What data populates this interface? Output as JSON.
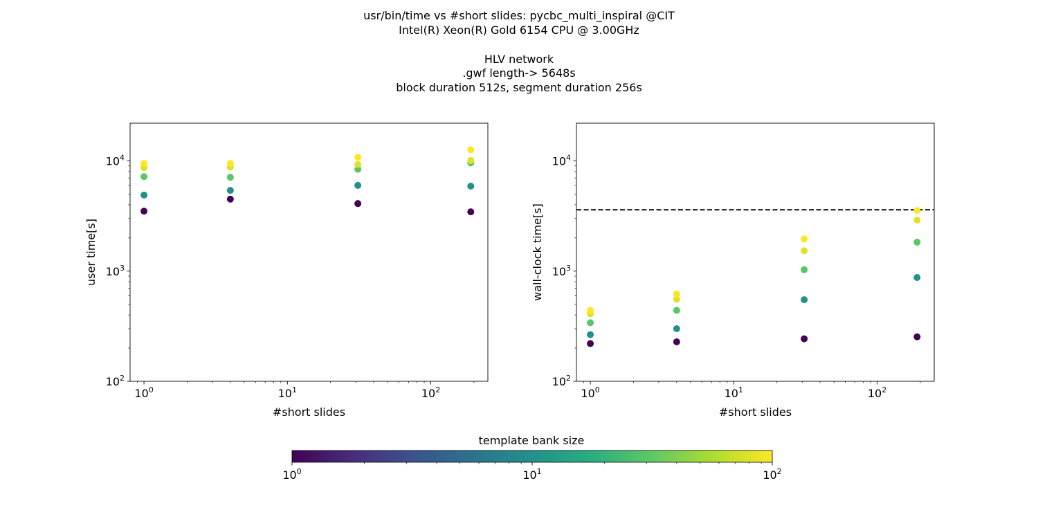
{
  "figure": {
    "title_lines": [
      "usr/bin/time vs #short slides: pycbc_multi_inspiral @CIT",
      "Intel(R) Xeon(R) Gold 6154 CPU @ 3.00GHz",
      "",
      "HLV network",
      ".gwf length-> 5648s",
      "block duration 512s, segment duration 256s"
    ]
  },
  "chart_data": [
    {
      "type": "scatter",
      "xlabel": "#short slides",
      "ylabel": "user time[s]",
      "xscale": "log",
      "yscale": "log",
      "xlim": [
        0.8,
        250
      ],
      "ylim": [
        100,
        22000
      ],
      "x_ticks": [
        {
          "base": "10",
          "exp": "0",
          "value": 1
        },
        {
          "base": "10",
          "exp": "1",
          "value": 10
        },
        {
          "base": "10",
          "exp": "2",
          "value": 100
        }
      ],
      "y_ticks": [
        {
          "base": "10",
          "exp": "2",
          "value": 100
        },
        {
          "base": "10",
          "exp": "3",
          "value": 1000
        },
        {
          "base": "10",
          "exp": "4",
          "value": 10000
        }
      ],
      "grid": false,
      "points": [
        {
          "x": 1,
          "y": 3500,
          "bank": 1
        },
        {
          "x": 1,
          "y": 4900,
          "bank": 10
        },
        {
          "x": 1,
          "y": 7200,
          "bank": 30
        },
        {
          "x": 1,
          "y": 8700,
          "bank": 80
        },
        {
          "x": 1,
          "y": 9500,
          "bank": 100
        },
        {
          "x": 4,
          "y": 4500,
          "bank": 1
        },
        {
          "x": 4,
          "y": 5400,
          "bank": 10
        },
        {
          "x": 4,
          "y": 7100,
          "bank": 30
        },
        {
          "x": 4,
          "y": 8800,
          "bank": 80
        },
        {
          "x": 4,
          "y": 9500,
          "bank": 100
        },
        {
          "x": 31,
          "y": 4100,
          "bank": 1
        },
        {
          "x": 31,
          "y": 6000,
          "bank": 10
        },
        {
          "x": 31,
          "y": 8400,
          "bank": 30
        },
        {
          "x": 31,
          "y": 9300,
          "bank": 80
        },
        {
          "x": 31,
          "y": 10800,
          "bank": 100
        },
        {
          "x": 190,
          "y": 3450,
          "bank": 1
        },
        {
          "x": 190,
          "y": 5900,
          "bank": 10
        },
        {
          "x": 190,
          "y": 9600,
          "bank": 30
        },
        {
          "x": 190,
          "y": 10100,
          "bank": 80
        },
        {
          "x": 190,
          "y": 12600,
          "bank": 100
        }
      ]
    },
    {
      "type": "scatter",
      "xlabel": "#short slides",
      "ylabel": "wall-clock time[s]",
      "xscale": "log",
      "yscale": "log",
      "xlim": [
        0.8,
        250
      ],
      "ylim": [
        100,
        22000
      ],
      "x_ticks": [
        {
          "base": "10",
          "exp": "0",
          "value": 1
        },
        {
          "base": "10",
          "exp": "1",
          "value": 10
        },
        {
          "base": "10",
          "exp": "2",
          "value": 100
        }
      ],
      "y_ticks": [
        {
          "base": "10",
          "exp": "2",
          "value": 100
        },
        {
          "base": "10",
          "exp": "3",
          "value": 1000
        },
        {
          "base": "10",
          "exp": "4",
          "value": 10000
        }
      ],
      "grid": false,
      "hline": {
        "y": 3600,
        "style": "dashed",
        "color": "#000000"
      },
      "points": [
        {
          "x": 1,
          "y": 220,
          "bank": 1
        },
        {
          "x": 1,
          "y": 265,
          "bank": 10
        },
        {
          "x": 1,
          "y": 340,
          "bank": 30
        },
        {
          "x": 1,
          "y": 410,
          "bank": 80
        },
        {
          "x": 1,
          "y": 440,
          "bank": 100
        },
        {
          "x": 4,
          "y": 228,
          "bank": 1
        },
        {
          "x": 4,
          "y": 300,
          "bank": 10
        },
        {
          "x": 4,
          "y": 440,
          "bank": 30
        },
        {
          "x": 4,
          "y": 555,
          "bank": 80
        },
        {
          "x": 4,
          "y": 620,
          "bank": 100
        },
        {
          "x": 31,
          "y": 243,
          "bank": 1
        },
        {
          "x": 31,
          "y": 550,
          "bank": 10
        },
        {
          "x": 31,
          "y": 1030,
          "bank": 30
        },
        {
          "x": 31,
          "y": 1530,
          "bank": 80
        },
        {
          "x": 31,
          "y": 1960,
          "bank": 100
        },
        {
          "x": 190,
          "y": 253,
          "bank": 1
        },
        {
          "x": 190,
          "y": 875,
          "bank": 10
        },
        {
          "x": 190,
          "y": 1830,
          "bank": 30
        },
        {
          "x": 190,
          "y": 2900,
          "bank": 80
        },
        {
          "x": 190,
          "y": 3550,
          "bank": 100
        }
      ]
    }
  ],
  "colorbar": {
    "label": "template bank size",
    "colormap": "viridis",
    "scale": "log",
    "range": [
      1,
      100
    ],
    "ticks": [
      {
        "base": "10",
        "exp": "0",
        "value": 1
      },
      {
        "base": "10",
        "exp": "1",
        "value": 10
      },
      {
        "base": "10",
        "exp": "2",
        "value": 100
      }
    ]
  }
}
